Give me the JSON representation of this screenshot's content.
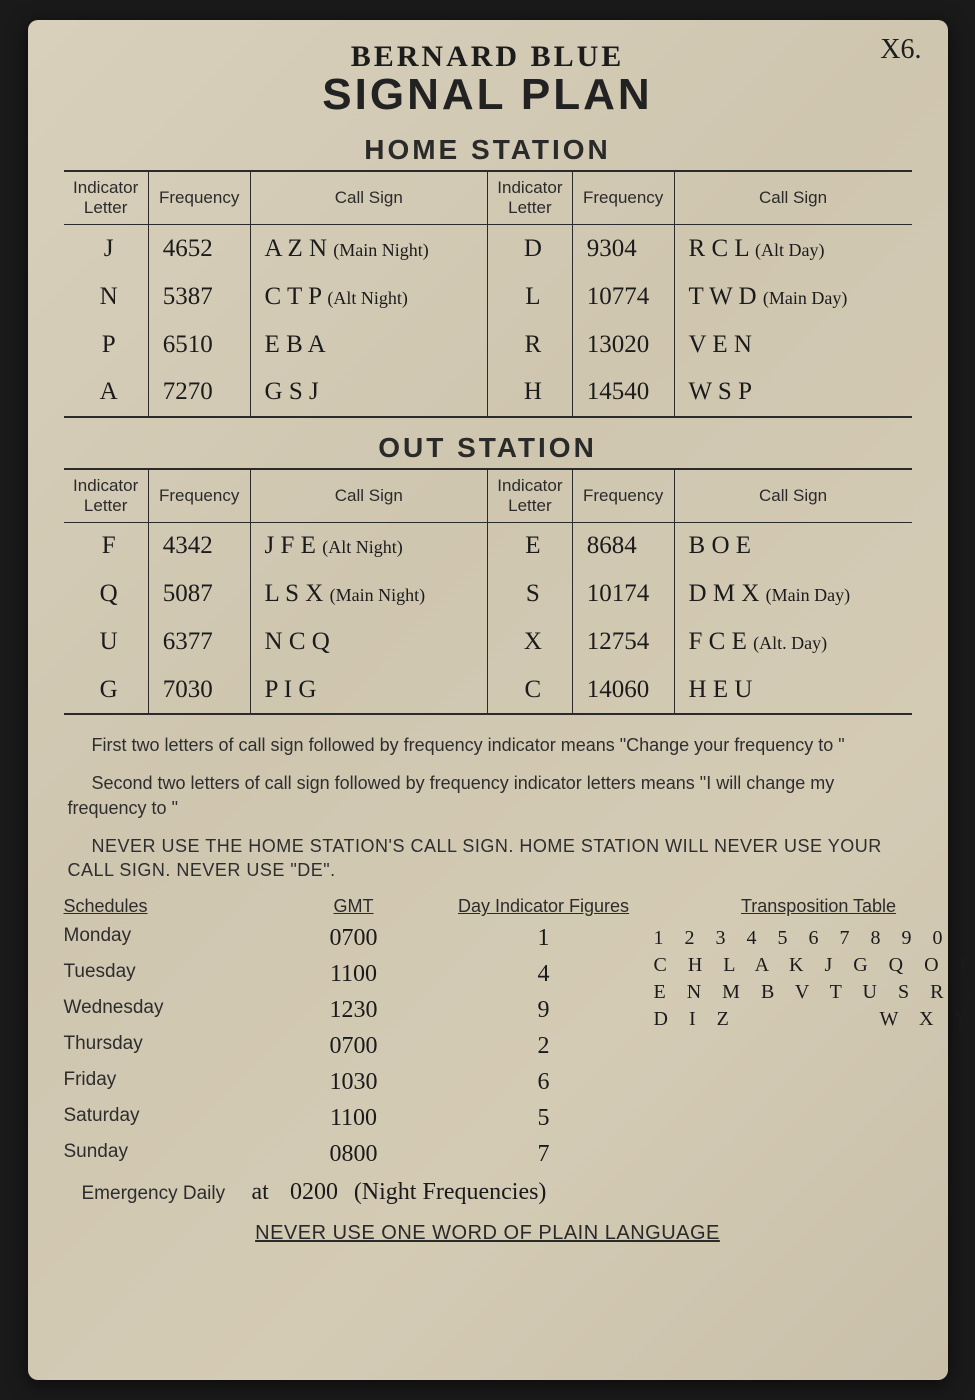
{
  "top_mark": "X6.",
  "handwritten_title": "BERNARD  BLUE",
  "main_title": "SIGNAL PLAN",
  "home_station": {
    "title": "HOME STATION",
    "headers": [
      "Indicator Letter",
      "Frequency",
      "Call Sign",
      "Indicator Letter",
      "Frequency",
      "Call Sign"
    ],
    "rows": [
      {
        "l1": "J",
        "f1": "4652",
        "c1": "A Z N",
        "n1": "(Main Night)",
        "l2": "D",
        "f2": "9304",
        "c2": "R C L",
        "n2": "(Alt Day)"
      },
      {
        "l1": "N",
        "f1": "5387",
        "c1": "C T P",
        "n1": "(Alt Night)",
        "l2": "L",
        "f2": "10774",
        "c2": "T W D",
        "n2": "(Main Day)"
      },
      {
        "l1": "P",
        "f1": "6510",
        "c1": "E B A",
        "n1": "",
        "l2": "R",
        "f2": "13020",
        "c2": "V E N",
        "n2": ""
      },
      {
        "l1": "A",
        "f1": "7270",
        "c1": "G S J",
        "n1": "",
        "l2": "H",
        "f2": "14540",
        "c2": "W S P",
        "n2": ""
      }
    ]
  },
  "out_station": {
    "title": "OUT STATION",
    "headers": [
      "Indicator Letter",
      "Frequency",
      "Call Sign",
      "Indicator Letter",
      "Frequency",
      "Call Sign"
    ],
    "rows": [
      {
        "l1": "F",
        "f1": "4342",
        "c1": "J F E",
        "n1": "(Alt Night)",
        "l2": "E",
        "f2": "8684",
        "c2": "B O E",
        "n2": ""
      },
      {
        "l1": "Q",
        "f1": "5087",
        "c1": "L S X",
        "n1": "(Main Night)",
        "l2": "S",
        "f2": "10174",
        "c2": "D M X",
        "n2": "(Main Day)"
      },
      {
        "l1": "U",
        "f1": "6377",
        "c1": "N C Q",
        "n1": "",
        "l2": "X",
        "f2": "12754",
        "c2": "F C E",
        "n2": "(Alt. Day)"
      },
      {
        "l1": "G",
        "f1": "7030",
        "c1": "P I G",
        "n1": "",
        "l2": "C",
        "f2": "14060",
        "c2": "H E U",
        "n2": ""
      }
    ]
  },
  "instructions": {
    "p1": "First two letters of call sign followed by frequency indicator means \"Change your frequency to                         \"",
    "p2": "Second two letters of call sign followed by frequency indicator letters means \"I will change my frequency to                         \"",
    "p3": "NEVER USE THE HOME STATION'S CALL SIGN.    HOME STATION WILL NEVER USE YOUR CALL SIGN.   NEVER USE \"DE\"."
  },
  "schedules": {
    "head_sched": "Schedules",
    "head_gmt": "GMT",
    "head_dif": "Day Indicator Figures",
    "head_trans": "Transposition Table",
    "rows": [
      {
        "day": "Monday",
        "gmt": "0700",
        "dif": "1"
      },
      {
        "day": "Tuesday",
        "gmt": "1100",
        "dif": "4"
      },
      {
        "day": "Wednesday",
        "gmt": "1230",
        "dif": "9"
      },
      {
        "day": "Thursday",
        "gmt": "0700",
        "dif": "2"
      },
      {
        "day": "Friday",
        "gmt": "1030",
        "dif": "6"
      },
      {
        "day": "Saturday",
        "gmt": "1100",
        "dif": "5"
      },
      {
        "day": "Sunday",
        "gmt": "0800",
        "dif": "7"
      }
    ],
    "emergency_label": "Emergency Daily",
    "emergency_at": "at",
    "emergency_time": "0200",
    "emergency_note": "(Night Frequencies)"
  },
  "transposition": {
    "line0": "1 2 3 4 5 6 7 8 9 0",
    "line1": "C H L A K J G Q O F",
    "line2": "E N M B V T U S R P",
    "line3": "D I Z           W X Y"
  },
  "footer": "NEVER USE ONE WORD OF PLAIN LANGUAGE",
  "colors": {
    "paper_bg": "#d4cbb5",
    "ink": "#1b1b1b",
    "print": "#2b2b2b"
  },
  "typography": {
    "print_font": "Futura / sans-serif",
    "hand_font": "cursive",
    "main_title_pt": 44,
    "section_title_pt": 28,
    "body_pt": 18,
    "hand_pt": 25
  }
}
